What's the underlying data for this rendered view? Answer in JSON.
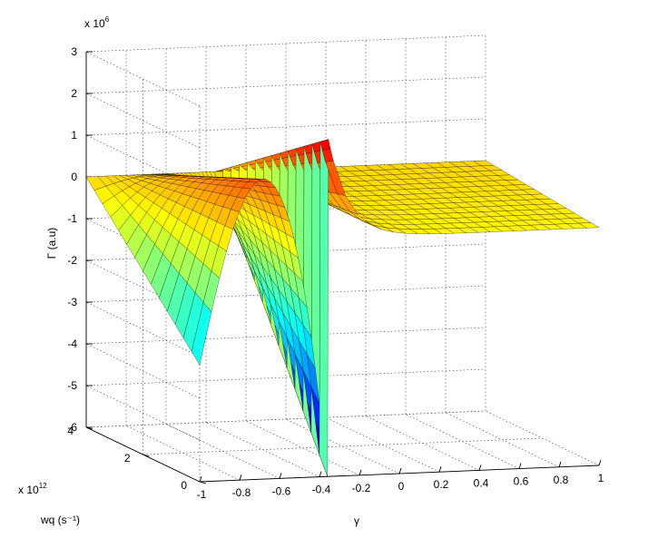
{
  "chart_data": {
    "type": "surface",
    "title": "",
    "xlabel": "γ",
    "ylabel": "wq (s⁻¹)",
    "zlabel": "Γ (a.u)",
    "x_ticks": [
      "-1",
      "-0.8",
      "-0.6",
      "-0.4",
      "-0.2",
      "0",
      "0.2",
      "0.4",
      "0.6",
      "0.8",
      "1"
    ],
    "y_ticks": [
      "0",
      "2",
      "4"
    ],
    "z_ticks": [
      "-6",
      "-5",
      "-4",
      "-3",
      "-2",
      "-1",
      "0",
      "1",
      "2",
      "3"
    ],
    "y_multiplier": "x 10",
    "y_multiplier_exp": "12",
    "z_multiplier": "x 10",
    "z_multiplier_exp": "6",
    "xlim": [
      -1,
      1
    ],
    "ylim": [
      0,
      4
    ],
    "zlim": [
      -6,
      3
    ],
    "grid": true,
    "colormap": "jet",
    "surface_samples": [
      {
        "x": -1.0,
        "y": 0.0,
        "z": -3.2
      },
      {
        "x": -0.6,
        "y": 2.0,
        "z": -1.0
      },
      {
        "x": -0.4,
        "y": 0.0,
        "z": -6.0
      },
      {
        "x": -0.4,
        "y": 4.0,
        "z": 0.0
      },
      {
        "x": -0.35,
        "y": 0.0,
        "z": 2.0
      },
      {
        "x": -0.2,
        "y": 4.0,
        "z": 0.0
      },
      {
        "x": 1.0,
        "y": 0.0,
        "z": -0.3
      }
    ]
  }
}
